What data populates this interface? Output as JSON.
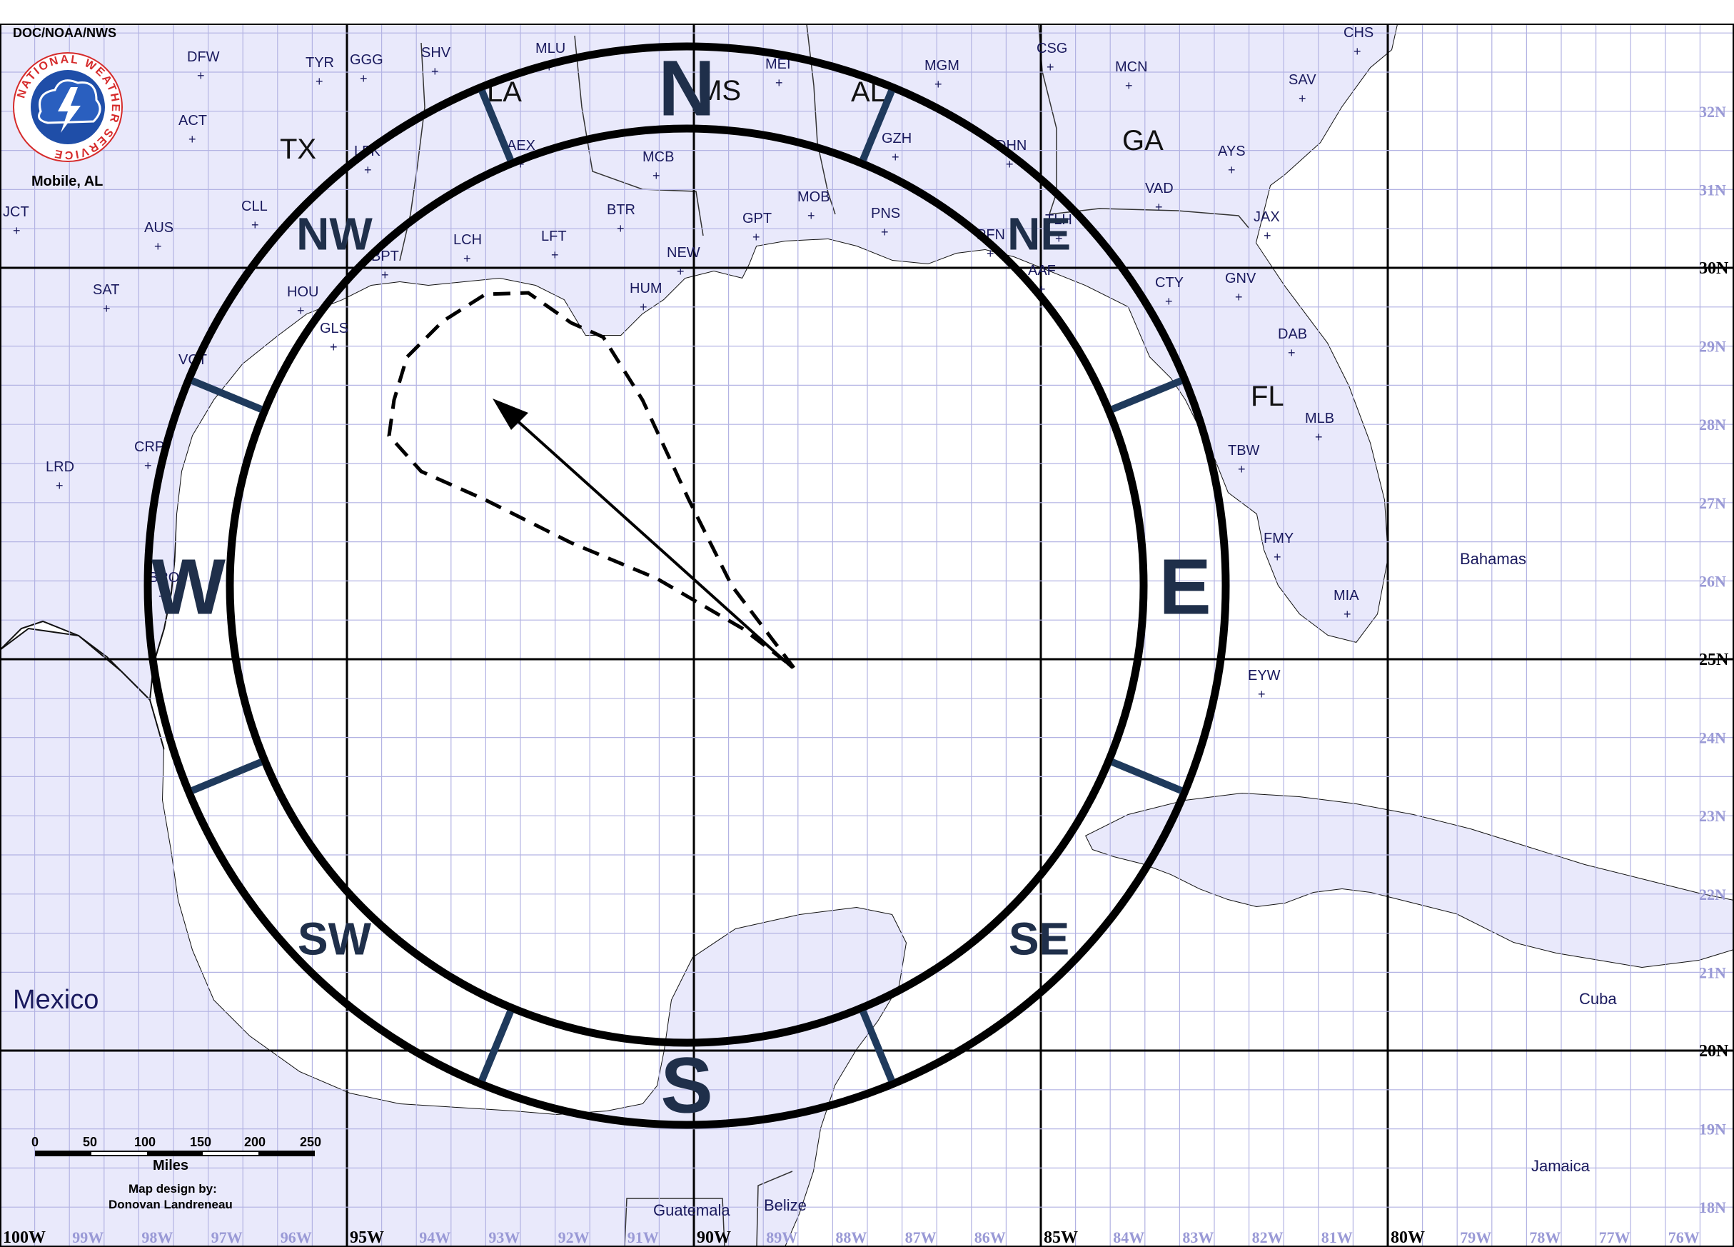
{
  "header": {
    "agency": "DOC/NOAA/NWS",
    "office": "Mobile, AL"
  },
  "logo": {
    "ring_text": "NATIONAL WEATHER SERVICE"
  },
  "credit": {
    "line1": "Map design by:",
    "line2": "Donovan Landreneau"
  },
  "scale_bar": {
    "ticks": [
      "0",
      "50",
      "100",
      "150",
      "200",
      "250"
    ],
    "unit": "Miles"
  },
  "compass": [
    "N",
    "NE",
    "E",
    "SE",
    "S",
    "SW",
    "W",
    "NW"
  ],
  "regions": [
    "TX",
    "LA",
    "MS",
    "AL",
    "GA",
    "FL"
  ],
  "countries": [
    "Mexico",
    "Bahamas",
    "Cuba",
    "Jamaica",
    "Guatemala",
    "Belize"
  ],
  "cities": [
    "DFW",
    "TYR",
    "GGG",
    "SHV",
    "MLU",
    "MEI",
    "MGM",
    "CSG",
    "MCN",
    "CHS",
    "SAV",
    "ACT",
    "LFK",
    "AEX",
    "MCB",
    "GZH",
    "DHN",
    "AYS",
    "VAD",
    "JCT",
    "CLL",
    "AUS",
    "BTR",
    "MOB",
    "PNS",
    "TLH",
    "JAX",
    "BPT",
    "LCH",
    "LFT",
    "GPT",
    "NEW",
    "PFN",
    "HOU",
    "SAT",
    "HUM",
    "AAF",
    "CTY",
    "GNV",
    "GLS",
    "DAB",
    "VCT",
    "MLB",
    "LRD",
    "CRP",
    "TBW",
    "FMY",
    "BRO",
    "MIA",
    "EYW"
  ],
  "longitudes": [
    "100W",
    "99W",
    "98W",
    "97W",
    "96W",
    "95W",
    "94W",
    "93W",
    "92W",
    "91W",
    "90W",
    "89W",
    "88W",
    "87W",
    "86W",
    "85W",
    "84W",
    "83W",
    "82W",
    "81W",
    "80W",
    "79W",
    "78W",
    "77W",
    "76W"
  ],
  "latitudes": [
    "32N",
    "31N",
    "30N",
    "29N",
    "28N",
    "27N",
    "26N",
    "25N",
    "24N",
    "23N",
    "22N",
    "21N",
    "20N",
    "19N",
    "18N"
  ],
  "colors": {
    "land": "#e9e9fb",
    "grid_minor": "#b3b3e3",
    "grid_major": "#000000",
    "compass_text": "#1f2f4a",
    "compass_tick": "#1f3a5c",
    "logo_blue": "#1f4ea8",
    "logo_red": "#d62b2b"
  }
}
